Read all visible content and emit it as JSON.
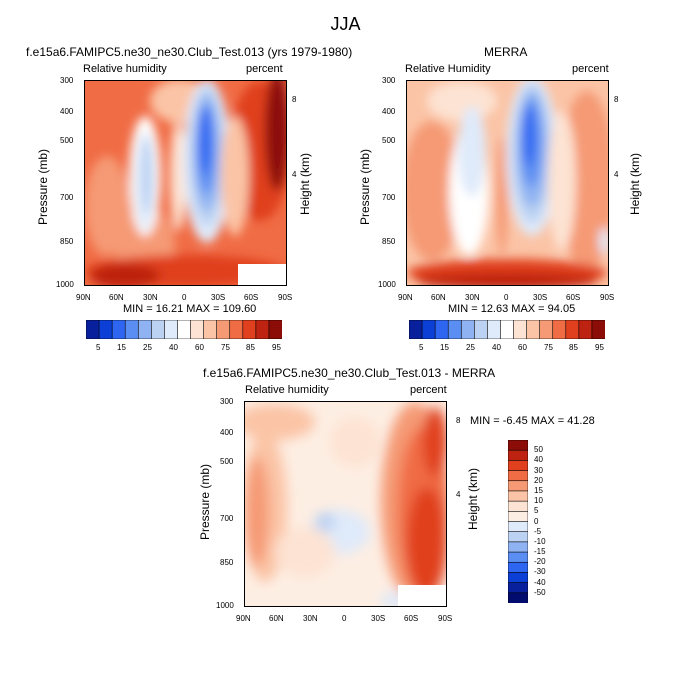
{
  "main_title": "JJA",
  "colors": {
    "scale_main": [
      "#08209c",
      "#0b3fd6",
      "#2e66f2",
      "#5b8ef2",
      "#8fb2f2",
      "#bcd2f2",
      "#dfeafa",
      "#ffffff",
      "#fde3d3",
      "#fbc4a6",
      "#f59a74",
      "#f06c45",
      "#e0401d",
      "#bd2310",
      "#8c0d07"
    ],
    "scale_diff": [
      "#020b6e",
      "#08209c",
      "#0b3fd6",
      "#2e66f2",
      "#5b8ef2",
      "#8fb2f2",
      "#bcd2f2",
      "#dfeafa",
      "#fdeee3",
      "#fde3d3",
      "#fbc4a6",
      "#f59a74",
      "#f06c45",
      "#e0401d",
      "#bd2310",
      "#8c0d07"
    ]
  },
  "panels": [
    {
      "title": "f.e15a6.FAMIPC5.ne30_ne30.Club_Test.013 (yrs 1979-1980)",
      "left_label": "Relative humidity",
      "right_label": "percent",
      "stats": "MIN = 16.21  MAX = 109.60",
      "ylabel": "Pressure (mb)",
      "ylabel_right": "Height (km)"
    },
    {
      "title": "MERRA",
      "left_label": "Relative Humidity",
      "right_label": "percent",
      "stats": "MIN = 12.63  MAX = 94.05",
      "ylabel": "Pressure (mb)",
      "ylabel_right": "Height (km)"
    },
    {
      "title": "f.e15a6.FAMIPC5.ne30_ne30.Club_Test.013 - MERRA",
      "left_label": "Relative humidity",
      "right_label": "percent",
      "stats": "MIN = -6.45  MAX = 41.28",
      "ylabel": "Pressure (mb)",
      "ylabel_right": "Height (km)"
    }
  ],
  "chart_data": [
    {
      "type": "heatmap",
      "title": "f.e15a6.FAMIPC5.ne30_ne30.Club_Test.013 (yrs 1979-1980)",
      "xlabel": "",
      "ylabel": "Pressure (mb)",
      "x_ticks": [
        "90N",
        "60N",
        "30N",
        "0",
        "30S",
        "60S",
        "90S"
      ],
      "y_ticks": [
        "300",
        "400",
        "500",
        "700",
        "850",
        "1000"
      ],
      "y_right_ticks": [
        "8",
        "4"
      ],
      "colorbar_levels": [
        "5",
        "15",
        "25",
        "40",
        "60",
        "75",
        "85",
        "95"
      ],
      "min": 16.21,
      "max": 109.6
    },
    {
      "type": "heatmap",
      "title": "MERRA",
      "xlabel": "",
      "ylabel": "Pressure (mb)",
      "x_ticks": [
        "90N",
        "60N",
        "30N",
        "0",
        "30S",
        "60S",
        "90S"
      ],
      "y_ticks": [
        "300",
        "400",
        "500",
        "700",
        "850",
        "1000"
      ],
      "y_right_ticks": [
        "8",
        "4"
      ],
      "colorbar_levels": [
        "5",
        "15",
        "25",
        "40",
        "60",
        "75",
        "85",
        "95"
      ],
      "min": 12.63,
      "max": 94.05
    },
    {
      "type": "heatmap",
      "title": "f.e15a6.FAMIPC5.ne30_ne30.Club_Test.013 - MERRA",
      "xlabel": "",
      "ylabel": "Pressure (mb)",
      "x_ticks": [
        "90N",
        "60N",
        "30N",
        "0",
        "30S",
        "60S",
        "90S"
      ],
      "y_ticks": [
        "300",
        "400",
        "500",
        "700",
        "850",
        "1000"
      ],
      "y_right_ticks": [
        "8",
        "4"
      ],
      "colorbar_levels": [
        "50",
        "40",
        "30",
        "20",
        "15",
        "10",
        "5",
        "0",
        "-5",
        "-10",
        "-15",
        "-20",
        "-30",
        "-40",
        "-50"
      ],
      "min": -6.45,
      "max": 41.28
    }
  ]
}
